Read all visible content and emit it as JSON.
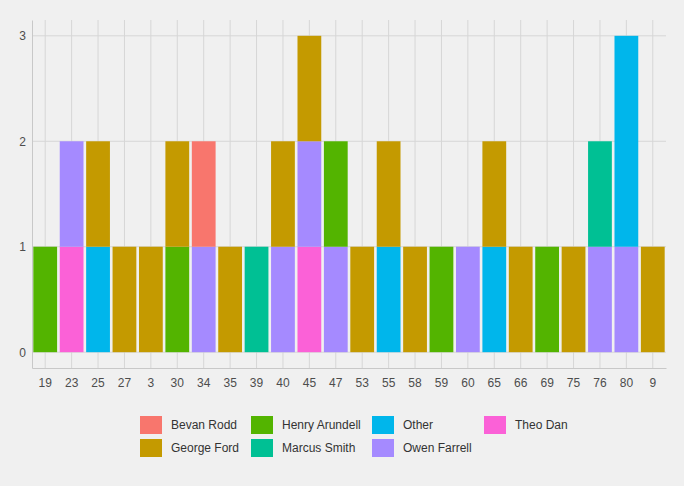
{
  "chart_data": {
    "type": "bar",
    "stacked": true,
    "grid": true,
    "legend": "bottom",
    "categories": [
      "19",
      "23",
      "25",
      "27",
      "3",
      "30",
      "34",
      "35",
      "39",
      "40",
      "45",
      "47",
      "53",
      "55",
      "58",
      "59",
      "60",
      "65",
      "66",
      "69",
      "75",
      "76",
      "80",
      "9"
    ],
    "series": [
      {
        "name": "Bevan Rodd",
        "color": "#F8766D",
        "values": [
          0,
          0,
          0,
          0,
          0,
          0,
          1,
          0,
          0,
          0,
          0,
          0,
          0,
          0,
          0,
          0,
          0,
          0,
          0,
          0,
          0,
          0,
          0,
          0
        ]
      },
      {
        "name": "George Ford",
        "color": "#C49A00",
        "values": [
          0,
          0,
          1,
          1,
          1,
          1,
          0,
          1,
          0,
          1,
          1,
          0,
          1,
          1,
          1,
          0,
          0,
          1,
          1,
          0,
          1,
          0,
          0,
          1
        ]
      },
      {
        "name": "Henry Arundell",
        "color": "#53B400",
        "values": [
          1,
          0,
          0,
          0,
          0,
          1,
          0,
          0,
          0,
          0,
          0,
          1,
          0,
          0,
          0,
          1,
          0,
          0,
          0,
          1,
          0,
          0,
          0,
          0
        ]
      },
      {
        "name": "Marcus Smith",
        "color": "#00C094",
        "values": [
          0,
          0,
          0,
          0,
          0,
          0,
          0,
          0,
          1,
          0,
          0,
          0,
          0,
          0,
          0,
          0,
          0,
          0,
          0,
          0,
          0,
          1,
          0,
          0
        ]
      },
      {
        "name": "Other",
        "color": "#00B6EB",
        "values": [
          0,
          0,
          1,
          0,
          0,
          0,
          0,
          0,
          0,
          0,
          0,
          0,
          0,
          1,
          0,
          0,
          0,
          1,
          0,
          0,
          0,
          0,
          2,
          0
        ]
      },
      {
        "name": "Owen Farrell",
        "color": "#A58AFF",
        "values": [
          0,
          1,
          0,
          0,
          0,
          0,
          1,
          0,
          0,
          1,
          1,
          1,
          0,
          0,
          0,
          0,
          1,
          0,
          0,
          0,
          0,
          1,
          1,
          0
        ]
      },
      {
        "name": "Theo Dan",
        "color": "#FB61D7",
        "values": [
          0,
          1,
          0,
          0,
          0,
          0,
          0,
          0,
          0,
          0,
          1,
          0,
          0,
          0,
          0,
          0,
          0,
          0,
          0,
          0,
          0,
          0,
          0,
          0
        ]
      }
    ],
    "ylim": [
      -0.15,
      3.15
    ],
    "yticks": [
      0,
      1,
      2,
      3
    ]
  }
}
